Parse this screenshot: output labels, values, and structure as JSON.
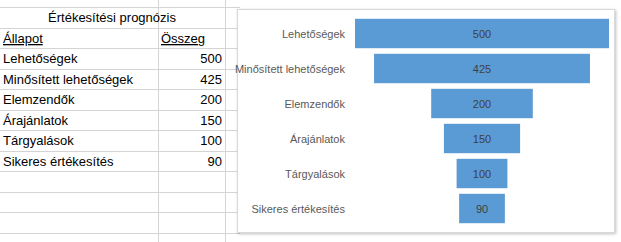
{
  "table": {
    "title": "Értékesítési prognózis",
    "header": [
      "Állapot",
      "Összeg"
    ],
    "rows": [
      [
        "Lehetőségek",
        500
      ],
      [
        "Minősített lehetőségek",
        425
      ],
      [
        "Elemzendők",
        200
      ],
      [
        "Árajánlatok",
        150
      ],
      [
        "Tárgyalások",
        100
      ],
      [
        "Sikeres értékesítés",
        90
      ]
    ]
  },
  "chart_data": {
    "type": "funnel",
    "orientation": "horizontal",
    "categories": [
      "Lehetőségek",
      "Minősített lehetőségek",
      "Elemzendők",
      "Árajánlatok",
      "Tárgyalások",
      "Sikeres értékesítés"
    ],
    "values": [
      500,
      425,
      200,
      150,
      100,
      90
    ],
    "color": "#5b9bd5",
    "data_labels": true,
    "grid": false,
    "tick_labels": "y"
  }
}
